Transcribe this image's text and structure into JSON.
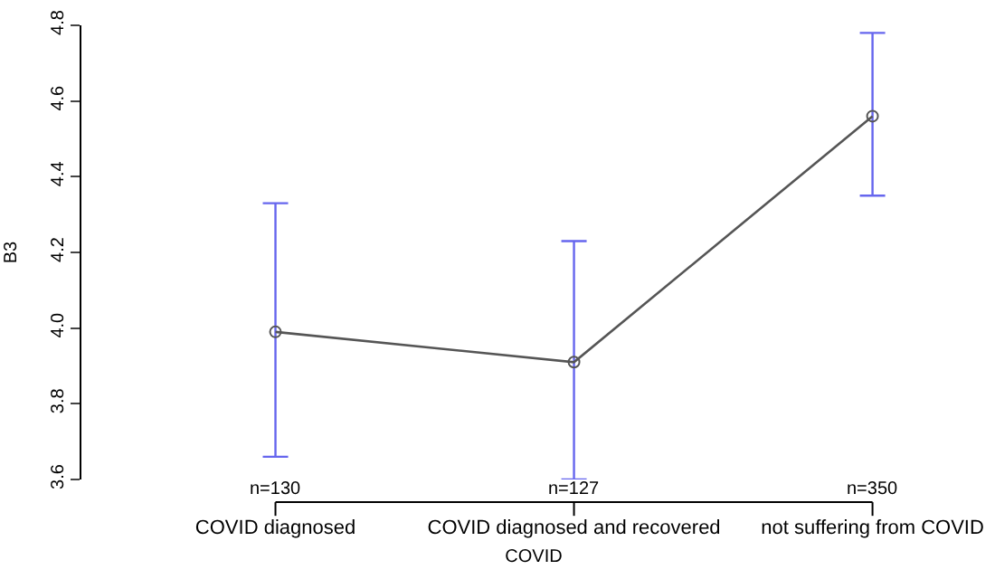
{
  "chart_data": {
    "type": "line",
    "xlabel": "COVID",
    "ylabel": "B3",
    "categories": [
      "COVID diagnosed",
      "COVID diagnosed and recovered",
      "not suffering from COVID"
    ],
    "series": [
      {
        "color": "#555555",
        "values": [
          3.99,
          3.91,
          4.56
        ],
        "errors": [
          [
            3.66,
            4.33
          ],
          [
            3.6,
            4.23
          ],
          [
            4.35,
            4.78
          ]
        ]
      }
    ],
    "ylim": [
      3.6,
      4.8
    ],
    "yticks": [
      {
        "value": 3.6,
        "label": "3.6"
      },
      {
        "value": 3.8,
        "label": "3.8"
      },
      {
        "value": 4.0,
        "label": "4.0"
      },
      {
        "value": 4.2,
        "label": "4.2"
      },
      {
        "value": 4.4,
        "label": "4.4"
      },
      {
        "value": 4.6,
        "label": "4.6"
      },
      {
        "value": 4.8,
        "label": "4.8"
      }
    ],
    "marker": "circle",
    "line_style": "solid",
    "annotations": [
      "n=130",
      "n=127",
      "n=350"
    ]
  }
}
